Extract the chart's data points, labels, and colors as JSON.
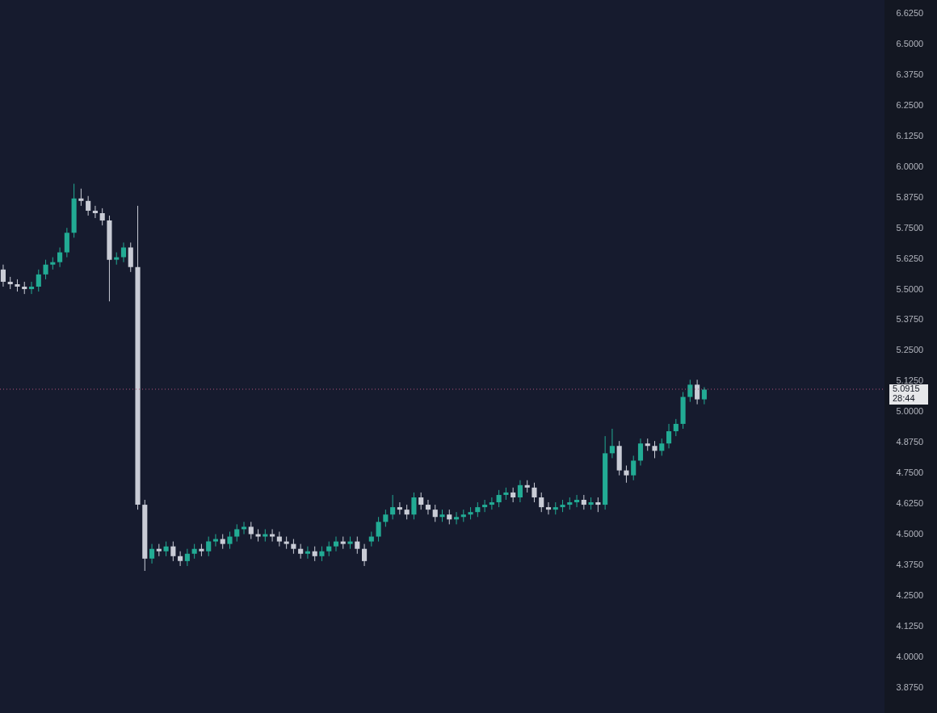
{
  "chart_data": {
    "type": "candlestick",
    "categories": [
      null,
      null,
      null,
      null,
      null,
      null,
      null,
      null,
      null,
      null,
      null,
      null,
      null,
      null,
      null,
      null,
      null,
      null,
      null,
      null,
      null,
      null,
      null,
      null,
      null,
      null,
      null,
      null,
      null,
      null,
      null,
      null,
      null,
      null,
      null,
      null,
      null,
      null,
      null,
      null,
      null,
      null,
      null,
      null,
      null,
      null,
      null,
      null,
      null,
      null,
      null,
      null,
      null,
      null,
      null,
      null,
      null,
      null,
      null,
      null,
      null,
      null,
      null,
      null,
      null,
      null,
      null,
      null,
      null,
      null,
      null,
      null,
      null,
      null,
      null,
      null,
      null,
      null,
      null,
      null,
      null,
      null,
      null,
      null,
      null,
      null,
      null,
      null,
      null,
      null,
      null,
      null,
      null,
      null,
      null,
      null,
      null,
      null,
      null,
      null,
      null,
      null,
      null,
      null,
      null,
      null,
      null,
      null,
      null,
      null,
      null,
      null,
      null,
      null,
      null,
      null,
      null,
      null,
      null,
      null,
      null,
      null,
      null,
      null,
      null
    ],
    "ohlc": [
      [
        5.58,
        5.6,
        5.51,
        5.53
      ],
      [
        5.53,
        5.55,
        5.5,
        5.52
      ],
      [
        5.52,
        5.54,
        5.49,
        5.51
      ],
      [
        5.51,
        5.53,
        5.48,
        5.5
      ],
      [
        5.5,
        5.53,
        5.48,
        5.51
      ],
      [
        5.51,
        5.58,
        5.49,
        5.56
      ],
      [
        5.56,
        5.62,
        5.54,
        5.6
      ],
      [
        5.6,
        5.63,
        5.58,
        5.61
      ],
      [
        5.61,
        5.67,
        5.59,
        5.65
      ],
      [
        5.65,
        5.75,
        5.63,
        5.73
      ],
      [
        5.73,
        5.93,
        5.71,
        5.87
      ],
      [
        5.87,
        5.91,
        5.84,
        5.86
      ],
      [
        5.86,
        5.88,
        5.8,
        5.82
      ],
      [
        5.82,
        5.84,
        5.79,
        5.81
      ],
      [
        5.81,
        5.83,
        5.76,
        5.78
      ],
      [
        5.78,
        5.8,
        5.45,
        5.62
      ],
      [
        5.62,
        5.65,
        5.6,
        5.63
      ],
      [
        5.63,
        5.69,
        5.61,
        5.67
      ],
      [
        5.67,
        5.69,
        5.57,
        5.59
      ],
      [
        5.59,
        5.84,
        4.6,
        4.62
      ],
      [
        4.62,
        4.64,
        4.35,
        4.4
      ],
      [
        4.4,
        4.46,
        4.38,
        4.44
      ],
      [
        4.44,
        4.46,
        4.41,
        4.43
      ],
      [
        4.43,
        4.47,
        4.41,
        4.45
      ],
      [
        4.45,
        4.47,
        4.39,
        4.41
      ],
      [
        4.41,
        4.43,
        4.37,
        4.39
      ],
      [
        4.39,
        4.44,
        4.37,
        4.42
      ],
      [
        4.42,
        4.46,
        4.4,
        4.44
      ],
      [
        4.44,
        4.46,
        4.41,
        4.43
      ],
      [
        4.43,
        4.49,
        4.41,
        4.47
      ],
      [
        4.47,
        4.5,
        4.45,
        4.48
      ],
      [
        4.48,
        4.5,
        4.44,
        4.46
      ],
      [
        4.46,
        4.51,
        4.44,
        4.49
      ],
      [
        4.49,
        4.54,
        4.47,
        4.52
      ],
      [
        4.52,
        4.55,
        4.5,
        4.53
      ],
      [
        4.53,
        4.55,
        4.48,
        4.5
      ],
      [
        4.5,
        4.52,
        4.47,
        4.49
      ],
      [
        4.49,
        4.52,
        4.47,
        4.5
      ],
      [
        4.5,
        4.52,
        4.47,
        4.49
      ],
      [
        4.49,
        4.51,
        4.45,
        4.47
      ],
      [
        4.47,
        4.49,
        4.44,
        4.46
      ],
      [
        4.46,
        4.48,
        4.42,
        4.44
      ],
      [
        4.44,
        4.46,
        4.4,
        4.42
      ],
      [
        4.42,
        4.45,
        4.4,
        4.43
      ],
      [
        4.43,
        4.45,
        4.39,
        4.41
      ],
      [
        4.41,
        4.45,
        4.39,
        4.43
      ],
      [
        4.43,
        4.47,
        4.41,
        4.45
      ],
      [
        4.45,
        4.49,
        4.43,
        4.47
      ],
      [
        4.47,
        4.49,
        4.44,
        4.46
      ],
      [
        4.46,
        4.49,
        4.44,
        4.47
      ],
      [
        4.47,
        4.49,
        4.42,
        4.44
      ],
      [
        4.44,
        4.46,
        4.37,
        4.39
      ],
      [
        4.47,
        4.51,
        4.45,
        4.49
      ],
      [
        4.49,
        4.57,
        4.47,
        4.55
      ],
      [
        4.55,
        4.6,
        4.53,
        4.58
      ],
      [
        4.58,
        4.66,
        4.56,
        4.61
      ],
      [
        4.61,
        4.63,
        4.58,
        4.6
      ],
      [
        4.6,
        4.62,
        4.56,
        4.58
      ],
      [
        4.58,
        4.67,
        4.56,
        4.65
      ],
      [
        4.65,
        4.67,
        4.6,
        4.62
      ],
      [
        4.62,
        4.64,
        4.58,
        4.6
      ],
      [
        4.6,
        4.62,
        4.55,
        4.57
      ],
      [
        4.57,
        4.6,
        4.55,
        4.58
      ],
      [
        4.58,
        4.6,
        4.54,
        4.56
      ],
      [
        4.56,
        4.59,
        4.54,
        4.57
      ],
      [
        4.57,
        4.6,
        4.55,
        4.58
      ],
      [
        4.58,
        4.61,
        4.56,
        4.59
      ],
      [
        4.59,
        4.63,
        4.57,
        4.61
      ],
      [
        4.61,
        4.64,
        4.59,
        4.62
      ],
      [
        4.62,
        4.65,
        4.6,
        4.63
      ],
      [
        4.63,
        4.68,
        4.61,
        4.66
      ],
      [
        4.66,
        4.69,
        4.64,
        4.67
      ],
      [
        4.67,
        4.69,
        4.63,
        4.65
      ],
      [
        4.65,
        4.72,
        4.63,
        4.7
      ],
      [
        4.7,
        4.72,
        4.67,
        4.69
      ],
      [
        4.69,
        4.71,
        4.63,
        4.65
      ],
      [
        4.65,
        4.67,
        4.59,
        4.61
      ],
      [
        4.61,
        4.63,
        4.58,
        4.6
      ],
      [
        4.6,
        4.63,
        4.58,
        4.61
      ],
      [
        4.61,
        4.64,
        4.59,
        4.62
      ],
      [
        4.62,
        4.65,
        4.6,
        4.63
      ],
      [
        4.63,
        4.66,
        4.61,
        4.64
      ],
      [
        4.64,
        4.66,
        4.6,
        4.62
      ],
      [
        4.62,
        4.65,
        4.6,
        4.63
      ],
      [
        4.63,
        4.65,
        4.59,
        4.62
      ],
      [
        4.62,
        4.9,
        4.6,
        4.83
      ],
      [
        4.83,
        4.93,
        4.81,
        4.86
      ],
      [
        4.86,
        4.88,
        4.74,
        4.76
      ],
      [
        4.76,
        4.78,
        4.71,
        4.74
      ],
      [
        4.74,
        4.82,
        4.72,
        4.8
      ],
      [
        4.8,
        4.89,
        4.78,
        4.87
      ],
      [
        4.87,
        4.89,
        4.84,
        4.86
      ],
      [
        4.86,
        4.88,
        4.81,
        4.84
      ],
      [
        4.84,
        4.89,
        4.82,
        4.87
      ],
      [
        4.87,
        4.95,
        4.85,
        4.92
      ],
      [
        4.92,
        4.97,
        4.9,
        4.95
      ],
      [
        4.95,
        5.08,
        4.93,
        5.06
      ],
      [
        5.06,
        5.13,
        5.04,
        5.11
      ],
      [
        5.11,
        5.13,
        5.03,
        5.05
      ],
      [
        5.05,
        5.1,
        5.03,
        5.09
      ],
      null,
      null,
      null,
      null,
      null,
      null,
      null,
      null,
      null,
      null,
      null,
      null,
      null,
      null,
      null,
      null,
      null,
      null,
      null,
      null,
      null,
      null,
      null,
      null,
      null
    ],
    "colors": [
      "#c9ccd6",
      "#c9ccd6",
      "#c9ccd6",
      "#c9ccd6",
      "#22ab94",
      "#22ab94",
      "#22ab94",
      "#22ab94",
      "#22ab94",
      "#22ab94",
      "#22ab94",
      "#c9ccd6",
      "#c9ccd6",
      "#c9ccd6",
      "#c9ccd6",
      "#c9ccd6",
      "#22ab94",
      "#22ab94",
      "#c9ccd6",
      "#c9ccd6",
      "#c9ccd6",
      "#22ab94",
      "#c9ccd6",
      "#22ab94",
      "#c9ccd6",
      "#c9ccd6",
      "#22ab94",
      "#22ab94",
      "#c9ccd6",
      "#22ab94",
      "#22ab94",
      "#c9ccd6",
      "#22ab94",
      "#22ab94",
      "#22ab94",
      "#c9ccd6",
      "#c9ccd6",
      "#22ab94",
      "#c9ccd6",
      "#c9ccd6",
      "#c9ccd6",
      "#c9ccd6",
      "#c9ccd6",
      "#22ab94",
      "#c9ccd6",
      "#22ab94",
      "#22ab94",
      "#22ab94",
      "#c9ccd6",
      "#22ab94",
      "#c9ccd6",
      "#c9ccd6",
      "#22ab94",
      "#22ab94",
      "#22ab94",
      "#22ab94",
      "#c9ccd6",
      "#c9ccd6",
      "#22ab94",
      "#c9ccd6",
      "#c9ccd6",
      "#c9ccd6",
      "#22ab94",
      "#c9ccd6",
      "#22ab94",
      "#22ab94",
      "#22ab94",
      "#22ab94",
      "#22ab94",
      "#22ab94",
      "#22ab94",
      "#22ab94",
      "#c9ccd6",
      "#22ab94",
      "#c9ccd6",
      "#c9ccd6",
      "#c9ccd6",
      "#c9ccd6",
      "#22ab94",
      "#22ab94",
      "#22ab94",
      "#22ab94",
      "#c9ccd6",
      "#22ab94",
      "#c9ccd6",
      "#22ab94",
      "#22ab94",
      "#c9ccd6",
      "#c9ccd6",
      "#22ab94",
      "#22ab94",
      "#c9ccd6",
      "#c9ccd6",
      "#22ab94",
      "#22ab94",
      "#22ab94",
      "#22ab94",
      "#22ab94",
      "#c9ccd6",
      "#22ab94",
      null,
      null,
      null,
      null,
      null,
      null,
      null,
      null,
      null,
      null,
      null,
      null,
      null,
      null,
      null,
      null,
      null,
      null,
      null,
      null,
      null,
      null,
      null,
      null,
      null
    ],
    "ylim": [
      3.77,
      6.68
    ],
    "yticks": [
      {
        "value": 3.875,
        "label": "3.8750"
      },
      {
        "value": 4.0,
        "label": "4.0000"
      },
      {
        "value": 4.125,
        "label": "4.1250"
      },
      {
        "value": 4.25,
        "label": "4.2500"
      },
      {
        "value": 4.375,
        "label": "4.3750"
      },
      {
        "value": 4.5,
        "label": "4.5000"
      },
      {
        "value": 4.625,
        "label": "4.6250"
      },
      {
        "value": 4.75,
        "label": "4.7500"
      },
      {
        "value": 4.875,
        "label": "4.8750"
      },
      {
        "value": 5.0,
        "label": "5.0000"
      },
      {
        "value": 5.125,
        "label": "5.1250"
      },
      {
        "value": 5.25,
        "label": "5.2500"
      },
      {
        "value": 5.375,
        "label": "5.3750"
      },
      {
        "value": 5.5,
        "label": "5.5000"
      },
      {
        "value": 5.625,
        "label": "5.6250"
      },
      {
        "value": 5.75,
        "label": "5.7500"
      },
      {
        "value": 5.875,
        "label": "5.8750"
      },
      {
        "value": 6.0,
        "label": "6.0000"
      },
      {
        "value": 6.125,
        "label": "6.1250"
      },
      {
        "value": 6.25,
        "label": "6.2500"
      },
      {
        "value": 6.375,
        "label": "6.3750"
      },
      {
        "value": 6.5,
        "label": "6.5000"
      },
      {
        "value": 6.625,
        "label": "6.6250"
      }
    ],
    "ref_lines": [
      {
        "axis": "y",
        "value": 5.0915,
        "label": "5.0915",
        "color": "#b2547a",
        "line_style": "dotted"
      }
    ],
    "annotations": [
      "28:44"
    ],
    "tick_labels": "y"
  }
}
